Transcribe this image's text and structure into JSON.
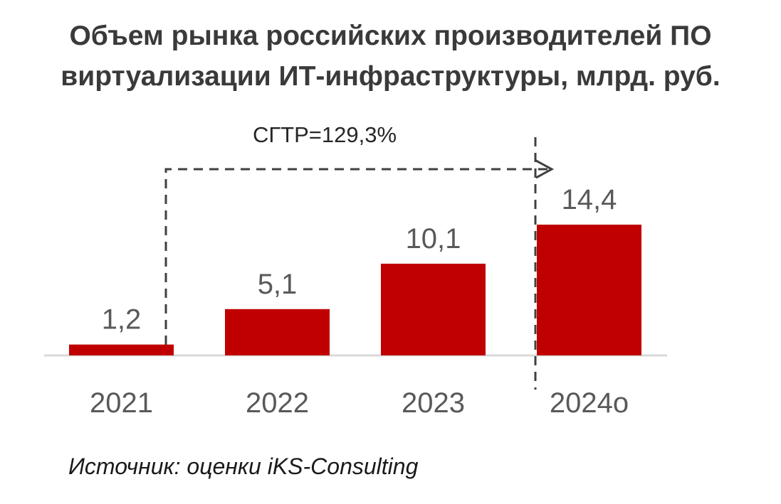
{
  "title_line1": "Объем рынка российских производителей ПО",
  "title_line2": "виртуализации ИТ-инфраструктуры, млрд. руб.",
  "source": "Источник: оценки iKS-Consulting",
  "chart_data": {
    "type": "bar",
    "categories": [
      "2021",
      "2022",
      "2023",
      "2024о"
    ],
    "values": [
      1.2,
      5.1,
      10.1,
      14.4
    ],
    "value_labels": [
      "1,2",
      "5,1",
      "10,1",
      "14,4"
    ],
    "annotation": "СГТР=129,3%",
    "ylim": [
      0,
      14.4
    ],
    "grid": false,
    "legend": "none",
    "bar_color": "#c00000",
    "text_color": "#595959",
    "axis_color": "#d9d9d9",
    "arrow_color": "#404040"
  }
}
